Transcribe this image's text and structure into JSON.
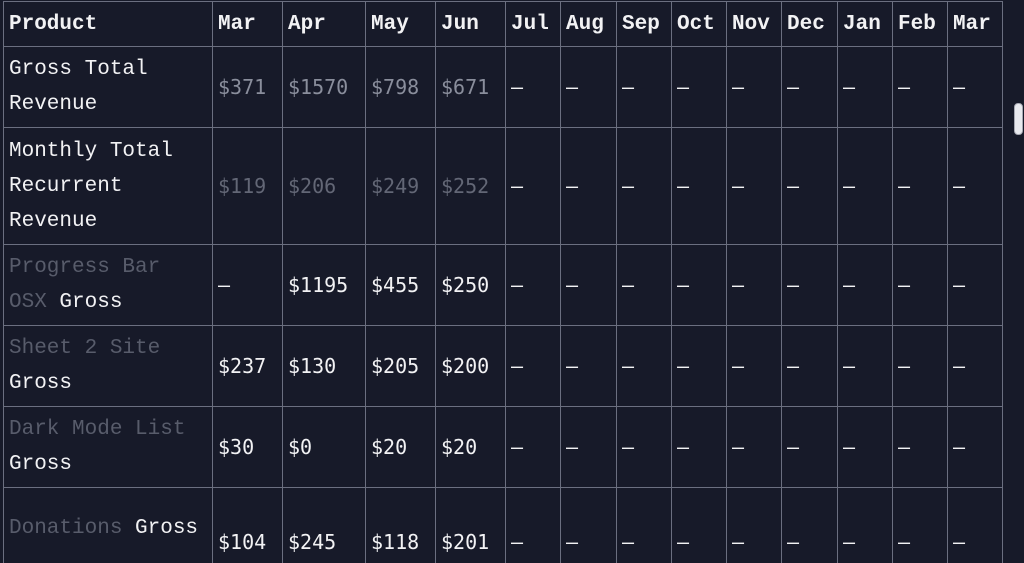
{
  "table": {
    "headers": [
      "Product",
      "Mar",
      "Apr",
      "May",
      "Jun",
      "Jul",
      "Aug",
      "Sep",
      "Oct",
      "Nov",
      "Dec",
      "Jan",
      "Feb",
      "Mar"
    ],
    "rows": [
      {
        "label_main": "Gross Total Revenue",
        "values": [
          "$371",
          "$1570",
          "$798",
          "$671",
          "–",
          "–",
          "–",
          "–",
          "–",
          "–",
          "–",
          "–",
          "–"
        ]
      },
      {
        "label_main": "Monthly Total Recurrent Revenue",
        "values": [
          "$119",
          "$206",
          "$249",
          "$252",
          "–",
          "–",
          "–",
          "–",
          "–",
          "–",
          "–",
          "–",
          "–"
        ]
      },
      {
        "label_link": "Progress Bar OSX",
        "label_suffix": " Gross",
        "values": [
          "–",
          "$1195",
          "$455",
          "$250",
          "–",
          "–",
          "–",
          "–",
          "–",
          "–",
          "–",
          "–",
          "–"
        ]
      },
      {
        "label_link": "Sheet 2 Site",
        "label_suffix": " Gross",
        "values": [
          "$237",
          "$130",
          "$205",
          "$200",
          "–",
          "–",
          "–",
          "–",
          "–",
          "–",
          "–",
          "–",
          "–"
        ]
      },
      {
        "label_link": "Dark Mode List",
        "label_suffix": " Gross",
        "values": [
          "$30",
          "$0",
          "$20",
          "$20",
          "–",
          "–",
          "–",
          "–",
          "–",
          "–",
          "–",
          "–",
          "–"
        ]
      },
      {
        "label_link": "Donations",
        "label_suffix": " Gross",
        "values": [
          "$104",
          "$245",
          "$118",
          "$201",
          "–",
          "–",
          "–",
          "–",
          "–",
          "–",
          "–",
          "–",
          "–"
        ]
      }
    ]
  },
  "colors": {
    "background": "#171a29",
    "grid": "#6b6f80",
    "text": "#f2f2f4",
    "muted_text": "#8a8e9c",
    "link_text": "#636776"
  }
}
